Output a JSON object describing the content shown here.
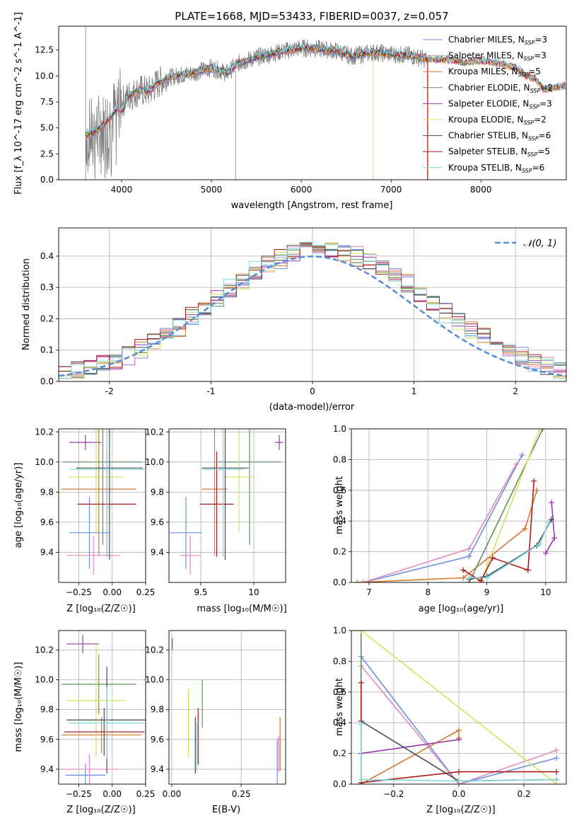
{
  "figure": {
    "title": "PLATE=1668, MJD=53433, FIBERID=0037, z=0.057"
  },
  "palette": {
    "chabrier_miles": "#6a8fdc",
    "salpeter_miles": "#e58ac0",
    "kroupa_miles": "#d9772b",
    "chabrier_elodie": "#5e8f62",
    "salpeter_elodie": "#9a3ab0",
    "kroupa_elodie": "#d2e35b",
    "chabrier_stelib": "#3f4b52",
    "salpeter_stelib": "#ad1c1c",
    "kroupa_stelib": "#7fd6df",
    "data": "#808080",
    "gaussian": "#5b8ed6",
    "grid": "#b0b0b0"
  },
  "chart_data": [
    {
      "id": "spectrum",
      "type": "line",
      "xlabel": "wavelength [Angstrom, rest frame]",
      "ylabel": "Flux [f_λ 10^-17 erg cm^-2 s^-1 A^-1]",
      "xlim": [
        3300,
        8950
      ],
      "ylim": [
        0,
        14.8
      ],
      "xticks": [
        4000,
        5000,
        6000,
        7000,
        8000
      ],
      "yticks": [
        0.0,
        2.5,
        5.0,
        7.5,
        10.0,
        12.5
      ],
      "data_range": [
        3600,
        7400
      ],
      "continuum": [
        [
          3600,
          4.3
        ],
        [
          3700,
          4.6
        ],
        [
          3800,
          5.2
        ],
        [
          3900,
          6.3
        ],
        [
          4000,
          7.5
        ],
        [
          4100,
          8.2
        ],
        [
          4200,
          8.6
        ],
        [
          4300,
          8.5
        ],
        [
          4400,
          9.3
        ],
        [
          4500,
          9.8
        ],
        [
          4600,
          10.0
        ],
        [
          4800,
          10.3
        ],
        [
          5000,
          10.8
        ],
        [
          5175,
          10.3
        ],
        [
          5300,
          11.2
        ],
        [
          5500,
          11.8
        ],
        [
          5800,
          12.4
        ],
        [
          6000,
          12.7
        ],
        [
          6200,
          12.6
        ],
        [
          6400,
          12.4
        ],
        [
          6563,
          11.9
        ],
        [
          6800,
          12.3
        ],
        [
          7000,
          12.1
        ],
        [
          7200,
          12.0
        ],
        [
          7400,
          11.6
        ]
      ],
      "extra_model_continuum": [
        [
          7400,
          11.6
        ],
        [
          7600,
          11.6
        ],
        [
          7800,
          11.3
        ],
        [
          8000,
          11.5
        ],
        [
          8200,
          11.2
        ],
        [
          8400,
          10.8
        ],
        [
          8500,
          10.0
        ],
        [
          8600,
          9.8
        ],
        [
          8700,
          8.7
        ],
        [
          8900,
          9.0
        ]
      ],
      "legend": [
        {
          "label": "Chabrier MILES, N",
          "sub": "SSP",
          "suffix": "=3"
        },
        {
          "label": "Salpeter MILES, N",
          "sub": "SSP",
          "suffix": "=3"
        },
        {
          "label": "Kroupa MILES, N",
          "sub": "SSP",
          "suffix": "=5"
        },
        {
          "label": "Chabrier ELODIE, N",
          "sub": "SSP",
          "suffix": "=2"
        },
        {
          "label": "Salpeter ELODIE, N",
          "sub": "SSP",
          "suffix": "=3"
        },
        {
          "label": "Kroupa ELODIE, N",
          "sub": "SSP",
          "suffix": "=2"
        },
        {
          "label": "Chabrier STELIB, N",
          "sub": "SSP",
          "suffix": "=6"
        },
        {
          "label": "Salpeter STELIB, N",
          "sub": "SSP",
          "suffix": "=5"
        },
        {
          "label": "Kroupa STELIB, N",
          "sub": "SSP",
          "suffix": "=6"
        }
      ]
    },
    {
      "id": "residuals",
      "type": "histogram",
      "xlabel": "(data-model)/error",
      "ylabel": "Normed distribution",
      "xlim": [
        -2.5,
        2.5
      ],
      "ylim": [
        0,
        0.49
      ],
      "xticks": [
        -2,
        -1,
        0,
        1,
        2
      ],
      "yticks": [
        0.0,
        0.1,
        0.2,
        0.3,
        0.4
      ],
      "legend": "𝒩(0, 1)",
      "bin_width": 0.125,
      "bin_start": -2.5
    },
    {
      "id": "age_vs_Z",
      "type": "errorbar",
      "xlabel": "Z [log₁₀(Z/Z☉)]",
      "ylabel": "age  [log₁₀(age/yr)]",
      "xlim": [
        -0.4,
        0.25
      ],
      "ylim": [
        9.2,
        10.22
      ],
      "xticks": [
        -0.25,
        0.0,
        0.25
      ],
      "xticklabels": [
        "−0.25",
        "0.00",
        "0.25"
      ],
      "yticks": [
        9.4,
        9.6,
        9.8,
        10.0,
        10.2
      ],
      "points": [
        {
          "s": "chabrier_miles",
          "x": -0.17,
          "xe": 0.15,
          "y": 9.53,
          "ye": 0.24
        },
        {
          "s": "salpeter_miles",
          "x": -0.14,
          "xe": 0.2,
          "y": 9.38,
          "ye": 0.13
        },
        {
          "s": "kroupa_miles",
          "x": -0.1,
          "xe": 0.28,
          "y": 9.82,
          "ye": 0.44
        },
        {
          "s": "chabrier_elodie",
          "x": -0.07,
          "xe": 0.3,
          "y": 10.0,
          "ye": 0.55
        },
        {
          "s": "salpeter_elodie",
          "x": -0.2,
          "xe": 0.12,
          "y": 10.13,
          "ye": 0.05
        },
        {
          "s": "kroupa_elodie",
          "x": -0.12,
          "xe": 0.2,
          "y": 9.9,
          "ye": 0.37
        },
        {
          "s": "chabrier_stelib",
          "x": -0.02,
          "xe": 0.25,
          "y": 9.96,
          "ye": 0.61
        },
        {
          "s": "salpeter_stelib",
          "x": -0.04,
          "xe": 0.22,
          "y": 9.72,
          "ye": 0.35
        },
        {
          "s": "kroupa_stelib",
          "x": -0.04,
          "xe": 0.28,
          "y": 9.95,
          "ye": 0.58
        }
      ]
    },
    {
      "id": "age_vs_mass",
      "type": "errorbar",
      "xlabel": "mass [log₁₀(M/M☉)]",
      "ylabel": "",
      "xlim": [
        9.2,
        10.3
      ],
      "ylim": [
        9.2,
        10.22
      ],
      "xticks": [
        9.5,
        10.0
      ],
      "yticks": [
        9.4,
        9.6,
        9.8,
        10.0,
        10.2
      ],
      "points": [
        {
          "s": "chabrier_miles",
          "x": 9.36,
          "xe": 0.15,
          "y": 9.53,
          "ye": 0.24
        },
        {
          "s": "salpeter_miles",
          "x": 9.4,
          "xe": 0.1,
          "y": 9.38,
          "ye": 0.13
        },
        {
          "s": "kroupa_miles",
          "x": 9.63,
          "xe": 0.12,
          "y": 9.82,
          "ye": 0.44
        },
        {
          "s": "chabrier_elodie",
          "x": 9.96,
          "xe": 0.3,
          "y": 10.0,
          "ye": 0.55
        },
        {
          "s": "salpeter_elodie",
          "x": 10.24,
          "xe": 0.04,
          "y": 10.13,
          "ye": 0.05
        },
        {
          "s": "kroupa_elodie",
          "x": 9.86,
          "xe": 0.15,
          "y": 9.9,
          "ye": 0.37
        },
        {
          "s": "chabrier_stelib",
          "x": 9.73,
          "xe": 0.22,
          "y": 9.96,
          "ye": 0.61
        },
        {
          "s": "salpeter_stelib",
          "x": 9.65,
          "xe": 0.16,
          "y": 9.72,
          "ye": 0.35
        },
        {
          "s": "kroupa_stelib",
          "x": 9.71,
          "xe": 0.2,
          "y": 9.95,
          "ye": 0.58
        }
      ]
    },
    {
      "id": "weight_vs_age",
      "type": "line",
      "xlabel": "age  [log₁₀(age/yr)]",
      "ylabel": "mass weight",
      "xlim": [
        6.7,
        10.35
      ],
      "ylim": [
        0,
        1.0
      ],
      "xticks": [
        7,
        8,
        9,
        10
      ],
      "yticks": [
        0.0,
        0.2,
        0.4,
        0.6,
        0.8,
        1.0
      ],
      "series": [
        {
          "s": "chabrier_miles",
          "x": [
            6.9,
            8.7,
            9.6
          ],
          "y": [
            0.0,
            0.17,
            0.83
          ]
        },
        {
          "s": "salpeter_miles",
          "x": [
            6.9,
            8.7,
            9.5
          ],
          "y": [
            0.0,
            0.22,
            0.77
          ]
        },
        {
          "s": "kroupa_miles",
          "x": [
            6.8,
            8.6,
            9.65,
            9.85
          ],
          "y": [
            0.0,
            0.03,
            0.35,
            0.6
          ]
        },
        {
          "s": "chabrier_elodie",
          "x": [
            8.7,
            9.95
          ],
          "y": [
            0.0,
            1.0
          ]
        },
        {
          "s": "salpeter_elodie",
          "x": [
            10.1,
            10.15,
            10.0
          ],
          "y": [
            0.52,
            0.29,
            0.19
          ]
        },
        {
          "s": "kroupa_elodie",
          "x": [
            8.9,
            9.9
          ],
          "y": [
            0.0,
            1.0
          ]
        },
        {
          "s": "chabrier_stelib",
          "x": [
            8.7,
            9.0,
            9.85,
            10.1
          ],
          "y": [
            0.02,
            0.04,
            0.24,
            0.41
          ]
        },
        {
          "s": "salpeter_stelib",
          "x": [
            8.6,
            8.9,
            9.1,
            9.7,
            9.8
          ],
          "y": [
            0.08,
            0.01,
            0.16,
            0.08,
            0.66
          ]
        },
        {
          "s": "kroupa_stelib",
          "x": [
            8.7,
            9.0,
            9.9,
            10.05
          ],
          "y": [
            0.03,
            0.03,
            0.25,
            0.39
          ]
        }
      ]
    },
    {
      "id": "mass_vs_Z",
      "type": "errorbar",
      "xlabel": "Z [log₁₀(Z/Z☉)]",
      "ylabel": "mass [log₁₀(M/M☉)]",
      "xlim": [
        -0.4,
        0.25
      ],
      "ylim": [
        9.3,
        10.33
      ],
      "xticks": [
        -0.25,
        0.0,
        0.25
      ],
      "xticklabels": [
        "−0.25",
        "0.00",
        "0.25"
      ],
      "yticks": [
        9.4,
        9.6,
        9.8,
        10.0,
        10.2
      ],
      "points": [
        {
          "s": "chabrier_miles",
          "x": -0.2,
          "xe": 0.15,
          "y": 9.36,
          "ye": 0.08
        },
        {
          "s": "salpeter_miles",
          "x": -0.17,
          "xe": 0.22,
          "y": 9.4,
          "ye": 0.1
        },
        {
          "s": "kroupa_miles",
          "x": -0.08,
          "xe": 0.3,
          "y": 9.63,
          "ye": 0.12
        },
        {
          "s": "chabrier_elodie",
          "x": -0.1,
          "xe": 0.28,
          "y": 9.97,
          "ye": 0.2
        },
        {
          "s": "salpeter_elodie",
          "x": -0.22,
          "xe": 0.12,
          "y": 10.24,
          "ye": 0.06
        },
        {
          "s": "kroupa_elodie",
          "x": -0.12,
          "xe": 0.22,
          "y": 9.86,
          "ye": 0.38
        },
        {
          "s": "chabrier_stelib",
          "x": -0.04,
          "xe": 0.3,
          "y": 9.73,
          "ye": 0.36
        },
        {
          "s": "salpeter_stelib",
          "x": -0.06,
          "xe": 0.3,
          "y": 9.65,
          "ye": 0.16
        },
        {
          "s": "kroupa_stelib",
          "x": -0.04,
          "xe": 0.28,
          "y": 9.71,
          "ye": 0.24
        }
      ]
    },
    {
      "id": "mass_vs_ebv",
      "type": "errorbar",
      "xlabel": "E(B-V)",
      "ylabel": "",
      "xlim": [
        -0.01,
        0.41
      ],
      "ylim": [
        9.3,
        10.33
      ],
      "xticks": [
        0.0,
        0.25
      ],
      "xticklabels": [
        "0.00",
        "0.25"
      ],
      "yticks": [
        9.4,
        9.6,
        9.8,
        10.0,
        10.2
      ],
      "points": [
        {
          "s": "chabrier_miles",
          "x": 0.38,
          "xe": 0.0,
          "y": 9.45,
          "ye": 0.15
        },
        {
          "s": "salpeter_miles",
          "x": 0.385,
          "xe": 0.0,
          "y": 9.5,
          "ye": 0.12
        },
        {
          "s": "kroupa_miles",
          "x": 0.39,
          "xe": 0.0,
          "y": 9.57,
          "ye": 0.18
        },
        {
          "s": "chabrier_elodie",
          "x": 0.11,
          "xe": 0.0,
          "y": 9.84,
          "ye": 0.16
        },
        {
          "s": "salpeter_elodie",
          "x": 0.002,
          "xe": 0.0,
          "y": 10.24,
          "ye": 0.04
        },
        {
          "s": "kroupa_elodie",
          "x": 0.06,
          "xe": 0.0,
          "y": 9.71,
          "ye": 0.23
        },
        {
          "s": "chabrier_stelib",
          "x": 0.085,
          "xe": 0.0,
          "y": 9.56,
          "ye": 0.19
        },
        {
          "s": "salpeter_stelib",
          "x": 0.095,
          "xe": 0.0,
          "y": 9.62,
          "ye": 0.19
        },
        {
          "s": "kroupa_stelib",
          "x": 0.09,
          "xe": 0.0,
          "y": 9.55,
          "ye": 0.16
        }
      ]
    },
    {
      "id": "weight_vs_Z",
      "type": "line",
      "xlabel": "Z [log₁₀(Z/Z☉)]",
      "ylabel": "mass weight",
      "xlim": [
        -0.33,
        0.33
      ],
      "ylim": [
        0,
        1.0
      ],
      "xticks": [
        -0.2,
        0.0,
        0.2
      ],
      "xticklabels": [
        "−0.2",
        "0.0",
        "0.2"
      ],
      "yticks": [
        0.0,
        0.2,
        0.4,
        0.6,
        0.8,
        1.0
      ],
      "series": [
        {
          "s": "chabrier_miles",
          "x": [
            -0.3,
            0.0,
            0.3
          ],
          "y": [
            0.83,
            0.0,
            0.17
          ]
        },
        {
          "s": "salpeter_miles",
          "x": [
            -0.3,
            0.0,
            0.3
          ],
          "y": [
            0.77,
            0.0,
            0.22
          ]
        },
        {
          "s": "kroupa_miles",
          "x": [
            -0.3,
            0.0,
            0.0
          ],
          "y": [
            0.0,
            0.35,
            0.3
          ]
        },
        {
          "s": "chabrier_elodie",
          "x": [
            -0.3,
            -0.3
          ],
          "y": [
            1.0,
            0.0
          ]
        },
        {
          "s": "salpeter_elodie",
          "x": [
            -0.3,
            0.0
          ],
          "y": [
            0.2,
            0.29
          ]
        },
        {
          "s": "kroupa_elodie",
          "x": [
            -0.3,
            0.3
          ],
          "y": [
            1.0,
            0.0
          ]
        },
        {
          "s": "chabrier_stelib",
          "x": [
            -0.3,
            0.0,
            0.3
          ],
          "y": [
            0.41,
            0.02,
            0.03
          ]
        },
        {
          "s": "salpeter_stelib",
          "x": [
            -0.3,
            -0.3,
            0.0,
            0.3
          ],
          "y": [
            0.66,
            0.01,
            0.08,
            0.08
          ]
        },
        {
          "s": "kroupa_stelib",
          "x": [
            -0.3,
            -0.3,
            0.0,
            0.3
          ],
          "y": [
            0.39,
            0.03,
            0.02,
            0.03
          ]
        }
      ]
    }
  ]
}
